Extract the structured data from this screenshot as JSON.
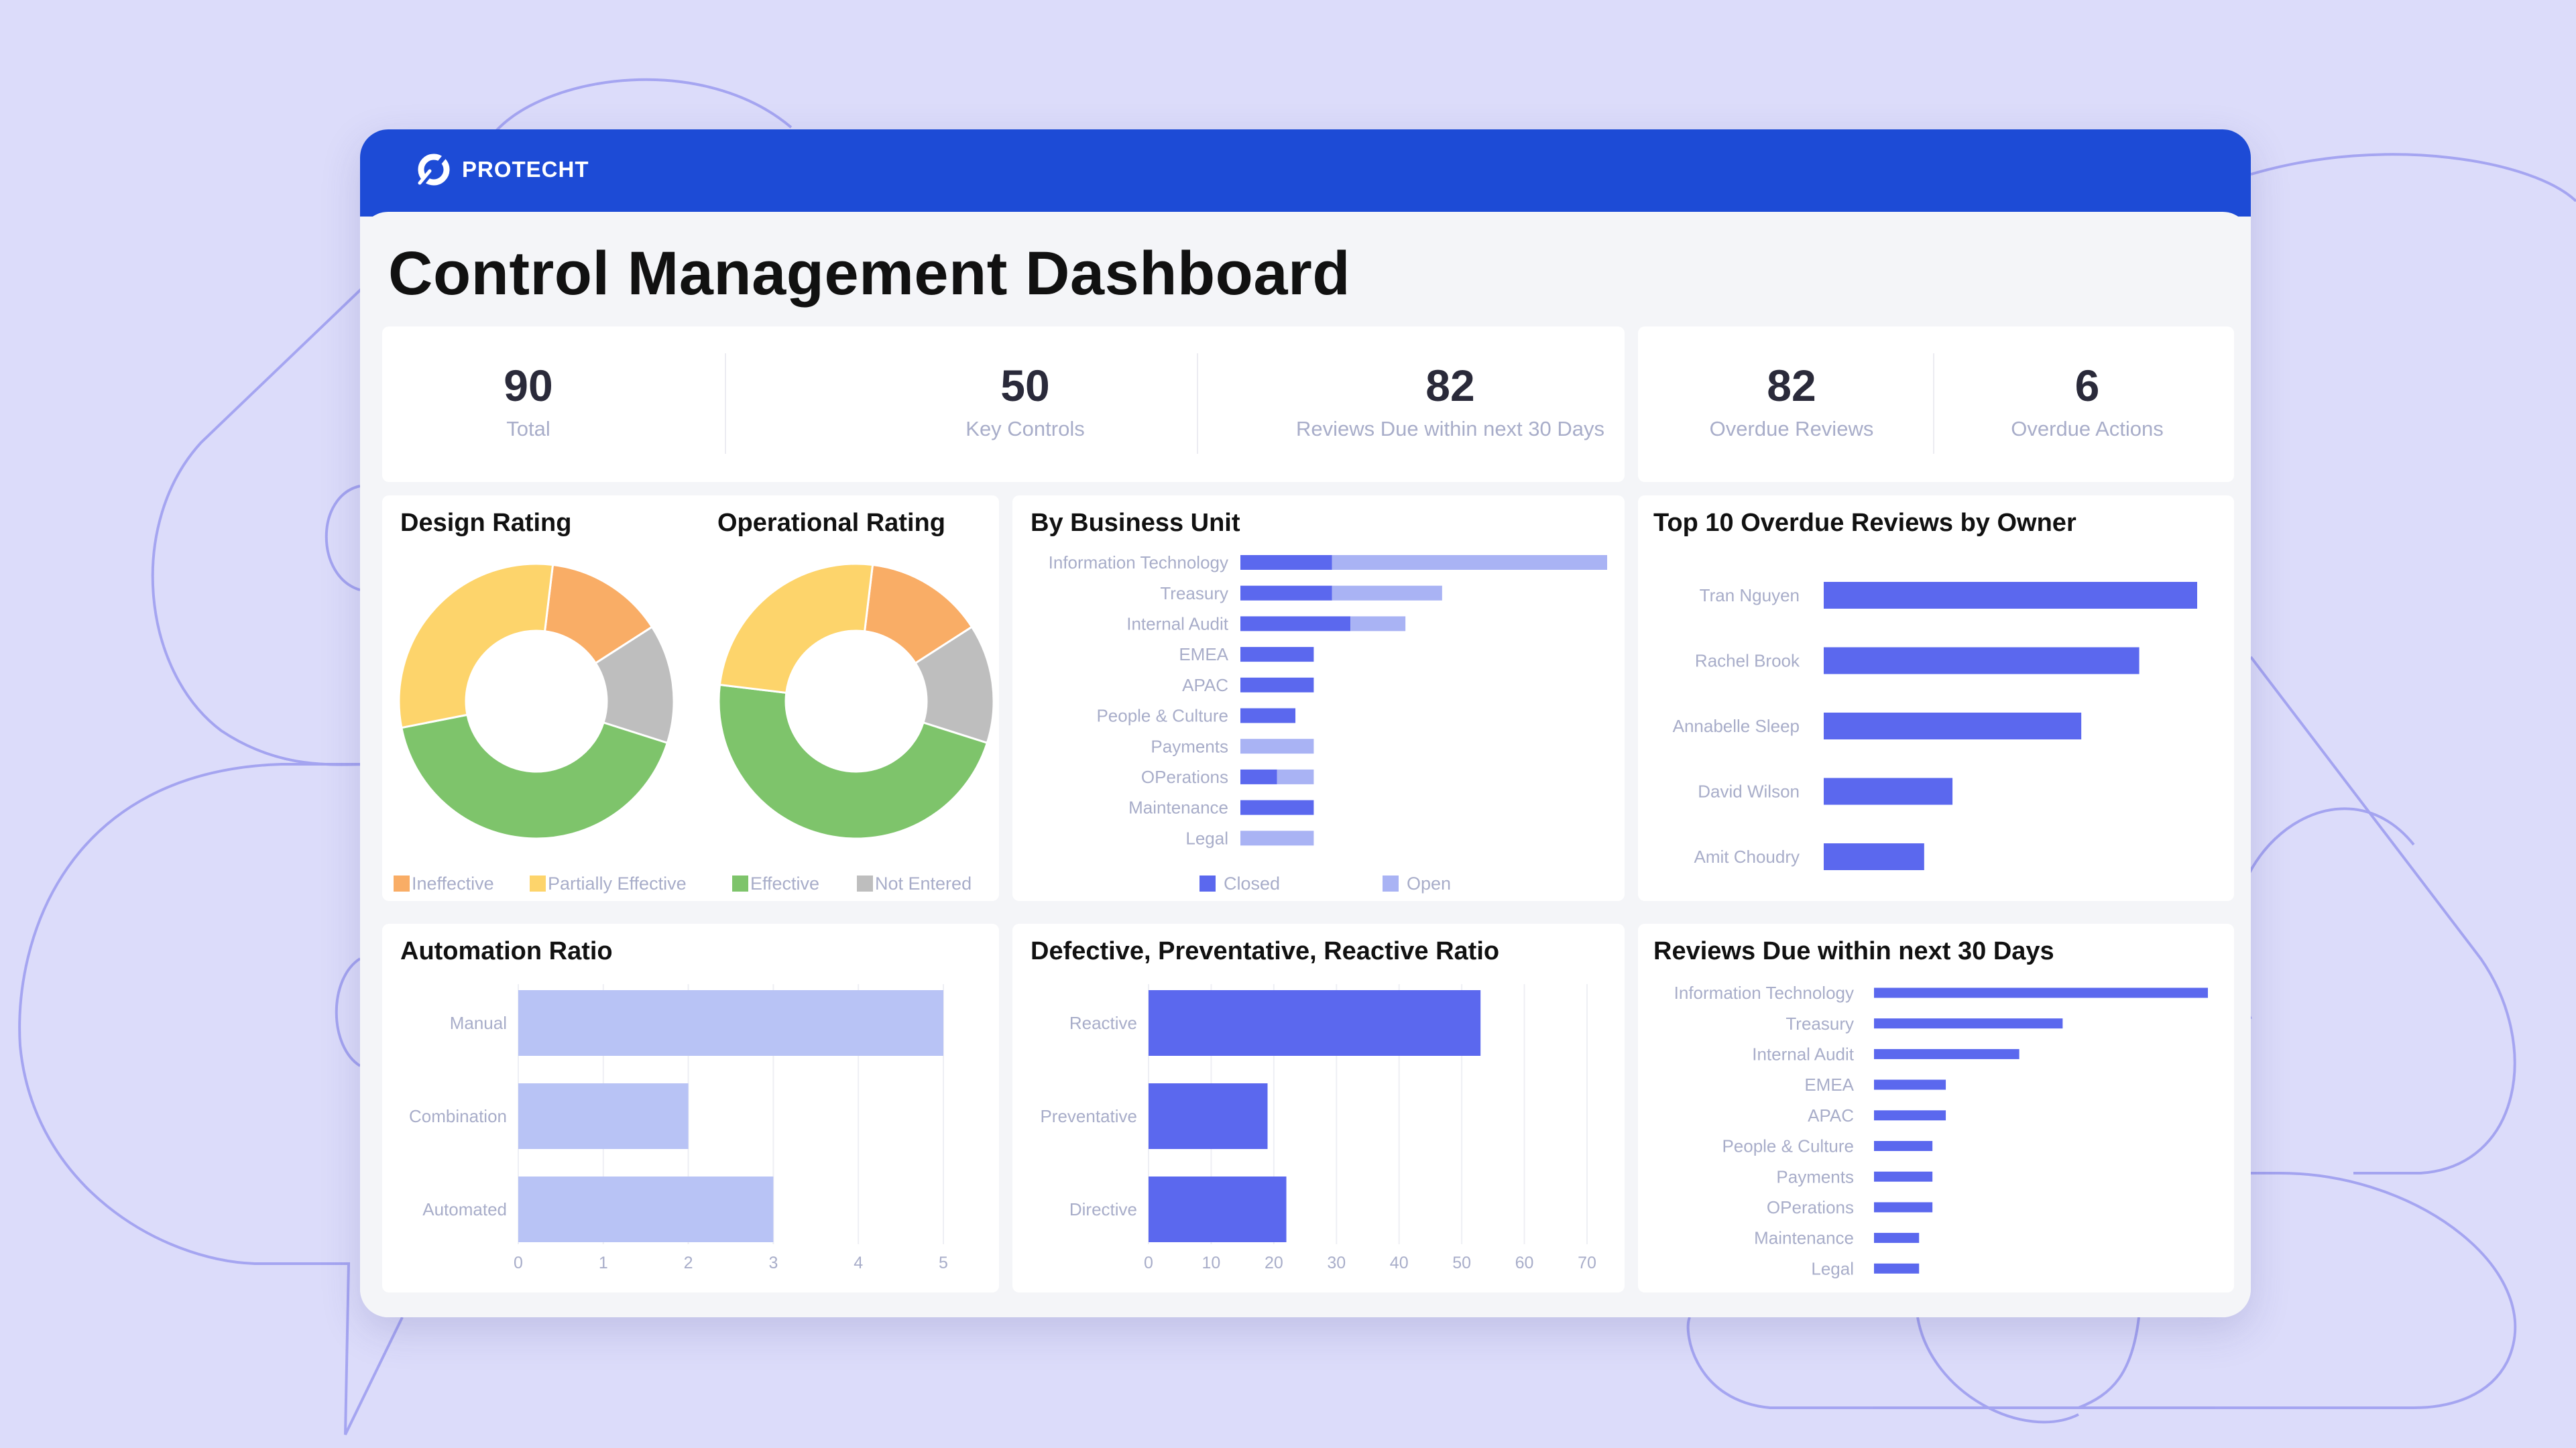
{
  "app": {
    "brand": "PROTECHT"
  },
  "page": {
    "title": "Control Management Dashboard"
  },
  "stats": [
    {
      "value": "90",
      "label": "Total"
    },
    {
      "value": "50",
      "label": "Key Controls"
    },
    {
      "value": "82",
      "label": "Reviews Due within next 30 Days"
    },
    {
      "value": "82",
      "label": "Overdue Reviews"
    },
    {
      "value": "6",
      "label": "Overdue Actions"
    }
  ],
  "colors": {
    "brand": "#1d4bd6",
    "ineffective": "#f9ad66",
    "partially_effective": "#fdd46b",
    "effective": "#7ec46b",
    "not_entered": "#bebebe",
    "closed": "#5b68ee",
    "open": "#a9b3f4",
    "automation": "#b8c3f5"
  },
  "ratings": {
    "design_title": "Design Rating",
    "operational_title": "Operational Rating",
    "legend": [
      "Ineffective",
      "Partially Effective",
      "Effective",
      "Not Entered"
    ]
  },
  "chart_data": [
    {
      "type": "pie",
      "title": "Design Rating",
      "categories": [
        "Ineffective",
        "Partially Effective",
        "Effective",
        "Not Entered"
      ],
      "values": [
        14,
        30,
        42,
        14
      ]
    },
    {
      "type": "pie",
      "title": "Operational Rating",
      "categories": [
        "Ineffective",
        "Partially Effective",
        "Effective",
        "Not Entered"
      ],
      "values": [
        14,
        25,
        47,
        14
      ]
    },
    {
      "type": "bar",
      "orientation": "horizontal",
      "stacked": true,
      "title": "By Business Unit",
      "categories": [
        "Information Technology",
        "Treasury",
        "Internal Audit",
        "EMEA",
        "APAC",
        "People & Culture",
        "Payments",
        "OPerations",
        "Maintenance",
        "Legal"
      ],
      "series": [
        {
          "name": "Closed",
          "values": [
            5,
            5,
            6,
            4,
            4,
            3,
            0,
            2,
            4,
            0
          ]
        },
        {
          "name": "Open",
          "values": [
            15,
            6,
            3,
            0,
            0,
            0,
            4,
            2,
            0,
            4
          ]
        }
      ],
      "legend": "bottom"
    },
    {
      "type": "bar",
      "orientation": "horizontal",
      "title": "Top 10 Overdue Reviews by Owner",
      "categories": [
        "Tran Nguyen",
        "Rachel Brook",
        "Annabelle Sleep",
        "David Wilson",
        "Amit Choudry"
      ],
      "values": [
        29,
        24.5,
        20,
        10,
        7.8
      ]
    },
    {
      "type": "bar",
      "orientation": "horizontal",
      "title": "Automation Ratio",
      "categories": [
        "Manual",
        "Combination",
        "Automated"
      ],
      "values": [
        5,
        2,
        3
      ],
      "xlim": [
        0,
        5
      ],
      "xticks": [
        "0",
        "1",
        "2",
        "3",
        "4",
        "5"
      ]
    },
    {
      "type": "bar",
      "orientation": "horizontal",
      "title": "Defective, Preventative, Reactive Ratio",
      "categories": [
        "Reactive",
        "Preventative",
        "Directive"
      ],
      "values": [
        53,
        19,
        22
      ],
      "xlim": [
        0,
        70
      ],
      "xticks": [
        "0",
        "10",
        "20",
        "30",
        "40",
        "50",
        "60",
        "70"
      ]
    },
    {
      "type": "bar",
      "orientation": "horizontal",
      "title": "Reviews Due within next 30 Days",
      "categories": [
        "Information Technology",
        "Treasury",
        "Internal Audit",
        "EMEA",
        "APAC",
        "People & Culture",
        "Payments",
        "OPerations",
        "Maintenance",
        "Legal"
      ],
      "values": [
        20,
        11.3,
        8.7,
        4.3,
        4.3,
        3.5,
        3.5,
        3.5,
        2.7,
        2.7
      ]
    }
  ]
}
